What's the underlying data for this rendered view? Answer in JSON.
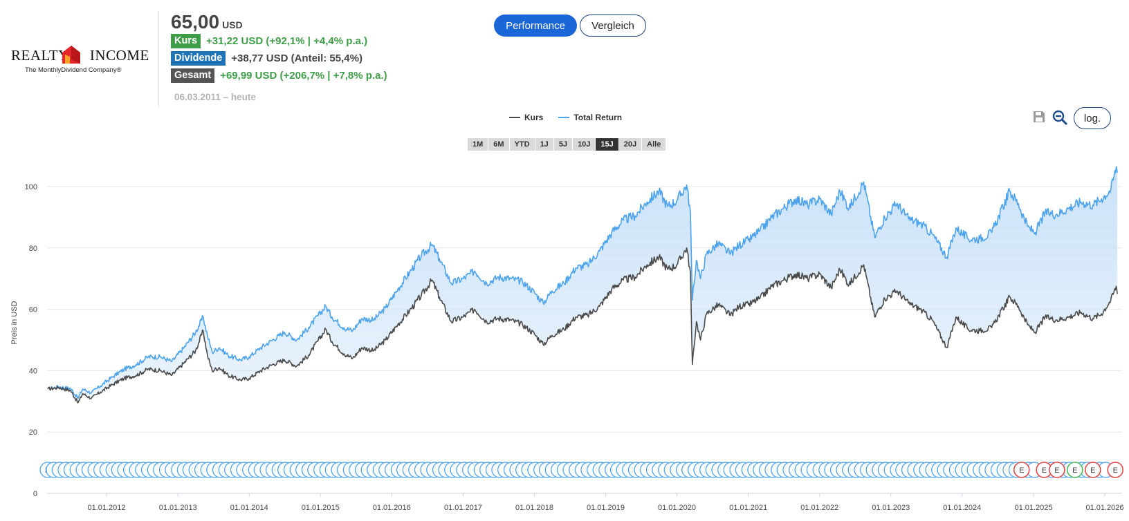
{
  "company": {
    "logo_text": "REALTY INCOME",
    "logo_word_left": "REALTY",
    "logo_word_right": "INCOME",
    "tagline": "The MonthlyDividend Company®"
  },
  "price": {
    "value": "65,00",
    "currency": "USD"
  },
  "performance": {
    "kurs": {
      "label": "Kurs",
      "text": "+31,22 USD (+92,1% | +4,4% p.a.)"
    },
    "dividende": {
      "label": "Dividende",
      "text": "+38,77 USD (Anteil: 55,4%)"
    },
    "gesamt": {
      "label": "Gesamt",
      "text": "+69,99 USD (+206,7% | +7,8% p.a.)"
    },
    "date_range": "06.03.2011 – heute"
  },
  "modes": {
    "active": "Performance",
    "inactive": "Vergleich"
  },
  "tools": {
    "save_icon": "save-icon",
    "zoom_icon": "zoom-out-icon",
    "log_label": "log."
  },
  "ranges": [
    {
      "label": "1M",
      "active": false
    },
    {
      "label": "6M",
      "active": false
    },
    {
      "label": "YTD",
      "active": false
    },
    {
      "label": "1J",
      "active": false
    },
    {
      "label": "5J",
      "active": false
    },
    {
      "label": "10J",
      "active": false
    },
    {
      "label": "15J",
      "active": true
    },
    {
      "label": "20J",
      "active": false
    },
    {
      "label": "Alle",
      "active": false
    }
  ],
  "colors": {
    "kurs": "#4a4a4a",
    "total_return": "#4da3ec",
    "fill": "#c7e0f8",
    "dividend_marker": "#4da3ec",
    "earnings_marker": "#e04848",
    "earnings_marker_green": "#4fb85a"
  },
  "chart_data": {
    "type": "line",
    "ylabel": "Preis in USD",
    "ylim": [
      0,
      110
    ],
    "yticks": [
      0,
      20,
      40,
      60,
      80,
      100
    ],
    "grid": true,
    "legend_position": "top-center",
    "xtick_labels": [
      "01.01.2012",
      "01.01.2013",
      "01.01.2014",
      "01.01.2015",
      "01.01.2016",
      "01.01.2017",
      "01.01.2018",
      "01.01.2019",
      "01.01.2020",
      "01.01.2021",
      "01.01.2022",
      "01.01.2023",
      "01.01.2024",
      "01.01.2025",
      "01.01.2026"
    ],
    "x_start": "2011-03-06",
    "series": [
      {
        "name": "Kurs",
        "points": [
          [
            "2011-03-06",
            34.0
          ],
          [
            "2011-05-01",
            34.5
          ],
          [
            "2011-07-01",
            33.5
          ],
          [
            "2011-08-08",
            29.5
          ],
          [
            "2011-09-01",
            32.5
          ],
          [
            "2011-10-15",
            31.0
          ],
          [
            "2011-12-01",
            33.0
          ],
          [
            "2012-02-01",
            35.5
          ],
          [
            "2012-04-01",
            37.5
          ],
          [
            "2012-06-01",
            38.5
          ],
          [
            "2012-08-01",
            40.5
          ],
          [
            "2012-10-01",
            40.0
          ],
          [
            "2012-12-01",
            38.5
          ],
          [
            "2013-02-01",
            42.5
          ],
          [
            "2013-04-01",
            46.5
          ],
          [
            "2013-05-10",
            53.0
          ],
          [
            "2013-06-01",
            45.0
          ],
          [
            "2013-06-25",
            40.0
          ],
          [
            "2013-08-01",
            41.0
          ],
          [
            "2013-09-15",
            38.5
          ],
          [
            "2013-11-15",
            37.0
          ],
          [
            "2014-01-01",
            37.5
          ],
          [
            "2014-03-01",
            40.0
          ],
          [
            "2014-05-01",
            42.0
          ],
          [
            "2014-07-01",
            43.5
          ],
          [
            "2014-09-01",
            41.5
          ],
          [
            "2014-11-01",
            45.0
          ],
          [
            "2015-01-28",
            53.5
          ],
          [
            "2015-03-01",
            49.5
          ],
          [
            "2015-05-01",
            45.5
          ],
          [
            "2015-06-15",
            44.0
          ],
          [
            "2015-08-01",
            47.5
          ],
          [
            "2015-10-01",
            46.5
          ],
          [
            "2015-12-01",
            50.0
          ],
          [
            "2016-02-01",
            55.0
          ],
          [
            "2016-04-01",
            59.5
          ],
          [
            "2016-06-01",
            64.5
          ],
          [
            "2016-07-25",
            69.5
          ],
          [
            "2016-09-01",
            64.0
          ],
          [
            "2016-11-01",
            56.0
          ],
          [
            "2017-01-01",
            57.5
          ],
          [
            "2017-03-01",
            60.0
          ],
          [
            "2017-05-01",
            56.0
          ],
          [
            "2017-07-01",
            57.0
          ],
          [
            "2017-09-01",
            56.5
          ],
          [
            "2017-11-01",
            55.0
          ],
          [
            "2018-01-01",
            52.0
          ],
          [
            "2018-02-15",
            48.5
          ],
          [
            "2018-04-01",
            51.5
          ],
          [
            "2018-06-01",
            53.5
          ],
          [
            "2018-08-01",
            57.5
          ],
          [
            "2018-10-01",
            58.0
          ],
          [
            "2018-12-01",
            61.0
          ],
          [
            "2019-02-01",
            66.5
          ],
          [
            "2019-04-01",
            69.5
          ],
          [
            "2019-06-01",
            70.5
          ],
          [
            "2019-08-01",
            74.5
          ],
          [
            "2019-10-01",
            77.0
          ],
          [
            "2019-11-15",
            73.0
          ],
          [
            "2020-01-01",
            74.5
          ],
          [
            "2020-02-20",
            80.0
          ],
          [
            "2020-03-10",
            72.0
          ],
          [
            "2020-03-20",
            42.0
          ],
          [
            "2020-04-10",
            56.0
          ],
          [
            "2020-05-01",
            50.0
          ],
          [
            "2020-06-01",
            58.5
          ],
          [
            "2020-08-01",
            61.5
          ],
          [
            "2020-10-01",
            58.0
          ],
          [
            "2020-11-15",
            61.0
          ],
          [
            "2021-01-01",
            61.5
          ],
          [
            "2021-03-01",
            63.5
          ],
          [
            "2021-05-01",
            67.5
          ],
          [
            "2021-07-01",
            69.5
          ],
          [
            "2021-09-01",
            71.5
          ],
          [
            "2021-11-01",
            70.0
          ],
          [
            "2022-01-01",
            71.5
          ],
          [
            "2022-03-01",
            67.0
          ],
          [
            "2022-04-15",
            73.0
          ],
          [
            "2022-06-01",
            68.0
          ],
          [
            "2022-08-15",
            74.5
          ],
          [
            "2022-10-10",
            57.5
          ],
          [
            "2022-12-01",
            63.5
          ],
          [
            "2023-02-01",
            66.0
          ],
          [
            "2023-04-01",
            62.0
          ],
          [
            "2023-06-01",
            60.0
          ],
          [
            "2023-08-01",
            56.5
          ],
          [
            "2023-10-15",
            47.5
          ],
          [
            "2023-12-01",
            57.5
          ],
          [
            "2024-02-01",
            53.5
          ],
          [
            "2024-04-01",
            53.0
          ],
          [
            "2024-06-01",
            54.0
          ],
          [
            "2024-09-01",
            64.0
          ],
          [
            "2024-10-15",
            61.0
          ],
          [
            "2024-12-01",
            55.0
          ],
          [
            "2025-01-10",
            52.5
          ],
          [
            "2025-03-01",
            57.5
          ],
          [
            "2025-05-01",
            56.5
          ],
          [
            "2025-07-01",
            57.5
          ],
          [
            "2025-09-01",
            59.0
          ],
          [
            "2025-11-01",
            57.0
          ],
          [
            "2025-12-15",
            58.5
          ],
          [
            "2026-02-01",
            63.0
          ],
          [
            "2026-03-01",
            67.5
          ],
          [
            "2026-03-06",
            65.0
          ]
        ]
      },
      {
        "name": "Total Return",
        "points": [
          [
            "2011-03-06",
            34.0
          ],
          [
            "2011-05-01",
            34.8
          ],
          [
            "2011-07-01",
            34.2
          ],
          [
            "2011-08-08",
            31.0
          ],
          [
            "2011-09-01",
            34.0
          ],
          [
            "2011-10-15",
            32.8
          ],
          [
            "2011-12-01",
            35.0
          ],
          [
            "2012-02-01",
            38.0
          ],
          [
            "2012-04-01",
            40.5
          ],
          [
            "2012-06-01",
            42.0
          ],
          [
            "2012-08-01",
            44.5
          ],
          [
            "2012-10-01",
            44.5
          ],
          [
            "2012-12-01",
            43.0
          ],
          [
            "2013-02-01",
            47.5
          ],
          [
            "2013-04-01",
            52.5
          ],
          [
            "2013-05-10",
            57.5
          ],
          [
            "2013-06-01",
            51.5
          ],
          [
            "2013-06-25",
            46.0
          ],
          [
            "2013-08-01",
            47.5
          ],
          [
            "2013-09-15",
            45.0
          ],
          [
            "2013-11-15",
            43.5
          ],
          [
            "2014-01-01",
            44.5
          ],
          [
            "2014-03-01",
            47.5
          ],
          [
            "2014-05-01",
            50.0
          ],
          [
            "2014-07-01",
            52.5
          ],
          [
            "2014-09-01",
            50.0
          ],
          [
            "2014-11-01",
            54.0
          ],
          [
            "2015-01-28",
            61.0
          ],
          [
            "2015-03-01",
            57.5
          ],
          [
            "2015-05-01",
            54.0
          ],
          [
            "2015-06-15",
            53.0
          ],
          [
            "2015-08-01",
            57.0
          ],
          [
            "2015-10-01",
            56.5
          ],
          [
            "2015-12-01",
            60.5
          ],
          [
            "2016-02-01",
            66.5
          ],
          [
            "2016-04-01",
            72.0
          ],
          [
            "2016-06-01",
            77.5
          ],
          [
            "2016-07-25",
            81.0
          ],
          [
            "2016-09-01",
            76.5
          ],
          [
            "2016-11-01",
            68.5
          ],
          [
            "2017-01-01",
            70.0
          ],
          [
            "2017-03-01",
            72.5
          ],
          [
            "2017-05-01",
            68.5
          ],
          [
            "2017-07-01",
            70.5
          ],
          [
            "2017-09-01",
            70.0
          ],
          [
            "2017-11-01",
            69.0
          ],
          [
            "2018-01-01",
            65.5
          ],
          [
            "2018-02-15",
            62.0
          ],
          [
            "2018-04-01",
            66.0
          ],
          [
            "2018-06-01",
            68.5
          ],
          [
            "2018-08-01",
            73.5
          ],
          [
            "2018-10-01",
            74.5
          ],
          [
            "2018-12-01",
            79.0
          ],
          [
            "2019-02-01",
            85.0
          ],
          [
            "2019-04-01",
            89.0
          ],
          [
            "2019-06-01",
            90.5
          ],
          [
            "2019-08-01",
            95.0
          ],
          [
            "2019-10-01",
            98.5
          ],
          [
            "2019-11-15",
            93.5
          ],
          [
            "2020-01-01",
            95.5
          ],
          [
            "2020-02-20",
            100.5
          ],
          [
            "2020-03-10",
            92.0
          ],
          [
            "2020-03-20",
            63.0
          ],
          [
            "2020-04-10",
            76.0
          ],
          [
            "2020-05-01",
            70.0
          ],
          [
            "2020-06-01",
            78.0
          ],
          [
            "2020-08-01",
            81.5
          ],
          [
            "2020-10-01",
            78.0
          ],
          [
            "2020-11-15",
            81.0
          ],
          [
            "2021-01-01",
            82.5
          ],
          [
            "2021-03-01",
            85.5
          ],
          [
            "2021-05-01",
            90.0
          ],
          [
            "2021-07-01",
            93.0
          ],
          [
            "2021-09-01",
            96.0
          ],
          [
            "2021-11-01",
            94.0
          ],
          [
            "2022-01-01",
            96.0
          ],
          [
            "2022-03-01",
            91.0
          ],
          [
            "2022-04-15",
            98.5
          ],
          [
            "2022-06-01",
            93.0
          ],
          [
            "2022-08-15",
            101.5
          ],
          [
            "2022-10-10",
            83.5
          ],
          [
            "2022-12-01",
            90.0
          ],
          [
            "2023-02-01",
            94.5
          ],
          [
            "2023-04-01",
            89.5
          ],
          [
            "2023-06-01",
            88.0
          ],
          [
            "2023-08-01",
            84.5
          ],
          [
            "2023-10-15",
            77.0
          ],
          [
            "2023-12-01",
            86.5
          ],
          [
            "2024-02-01",
            83.0
          ],
          [
            "2024-04-01",
            83.0
          ],
          [
            "2024-06-01",
            85.0
          ],
          [
            "2024-09-01",
            98.5
          ],
          [
            "2024-10-15",
            94.5
          ],
          [
            "2024-12-01",
            87.0
          ],
          [
            "2025-01-10",
            85.0
          ],
          [
            "2025-03-01",
            91.5
          ],
          [
            "2025-05-01",
            91.0
          ],
          [
            "2025-07-01",
            93.0
          ],
          [
            "2025-09-01",
            95.0
          ],
          [
            "2025-11-01",
            94.0
          ],
          [
            "2025-12-15",
            96.0
          ],
          [
            "2026-02-01",
            99.0
          ],
          [
            "2026-03-01",
            106.5
          ],
          [
            "2026-03-06",
            104.5
          ]
        ]
      }
    ],
    "event_markers": {
      "dividend_label": "D",
      "earnings_label": "E",
      "earnings_dates": [
        "2024-11-01",
        "2025-02-24",
        "2025-05-01",
        "2025-08-01",
        "2025-11-01",
        "2026-02-24"
      ],
      "earnings_green": [
        "2025-08-01"
      ]
    }
  }
}
